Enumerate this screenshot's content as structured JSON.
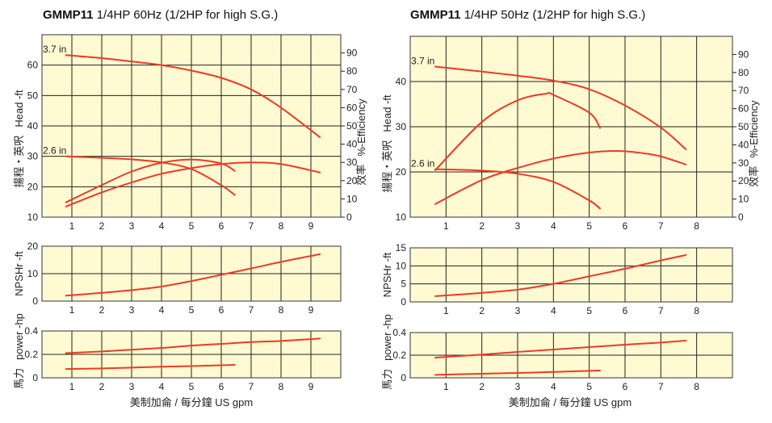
{
  "chart_data": [
    {
      "id": "left",
      "type": "line",
      "title_model": "GMMP11",
      "title_rest": " 1/4HP  60Hz (1/2HP for high S.G.)",
      "xlabel": "美制加侖 / 每分鐘  US gpm",
      "xlim": [
        0,
        10
      ],
      "xticks": [
        1,
        2,
        3,
        4,
        5,
        6,
        7,
        8,
        9
      ],
      "head": {
        "ylabel_cn": "揚程・英呎",
        "ylabel": "Head -ft",
        "ylim": [
          10,
          70
        ],
        "yticks": [
          10,
          20,
          30,
          40,
          50,
          60
        ],
        "y2label_cn": "效率",
        "y2label": "%-Efficiency",
        "y2lim": [
          0,
          100
        ],
        "y2ticks": [
          0,
          10,
          20,
          30,
          40,
          50,
          60,
          70,
          80,
          90
        ],
        "series": [
          {
            "name": "3.7 in",
            "kind": "head",
            "x": [
              0.8,
              2,
              3,
              4,
              5,
              6,
              7,
              8,
              9.3
            ],
            "y": [
              63.3,
              62.3,
              61.2,
              60,
              58.2,
              55.8,
              52,
              46,
              36.3
            ]
          },
          {
            "name": "2.6 in",
            "kind": "head",
            "x": [
              0.8,
              2,
              3,
              4,
              5,
              6,
              6.45
            ],
            "y": [
              30,
              29.5,
              29,
              28,
              25.8,
              20.5,
              17.3
            ]
          },
          {
            "name": "2.6 in efficiency",
            "kind": "eff",
            "x": [
              0.8,
              2,
              3,
              4,
              5,
              6,
              6.45
            ],
            "y": [
              8.1,
              17.6,
              25,
              29.8,
              31.6,
              29.4,
              25.4
            ]
          },
          {
            "name": "3.7 in efficiency",
            "kind": "eff",
            "x": [
              0.8,
              2,
              3,
              4,
              5,
              6,
              7,
              8,
              9.3
            ],
            "y": [
              5.8,
              13.6,
              19,
              23.8,
              26.9,
              29.1,
              30,
              29.1,
              24.5
            ]
          }
        ]
      },
      "npsh": {
        "ylabel": "NPSHr -ft",
        "ylim": [
          0,
          20
        ],
        "yticks": [
          0,
          10,
          20
        ],
        "series": [
          {
            "name": "NPSHr",
            "x": [
              0.8,
              2,
              3,
              4,
              5,
              6,
              7,
              8,
              9.3
            ],
            "y": [
              2,
              3,
              4,
              5.3,
              7.3,
              9.6,
              11.9,
              14.3,
              17.1
            ]
          }
        ]
      },
      "power": {
        "ylabel_cn": "馬力",
        "ylabel": "power -hp",
        "ylim": [
          0,
          0.4
        ],
        "yticks": [
          0,
          0.2,
          0.4
        ],
        "series": [
          {
            "name": "3.7 in power",
            "x": [
              0.8,
              2,
              3,
              4,
              5,
              6,
              7,
              8,
              9.3
            ],
            "y": [
              0.21,
              0.225,
              0.24,
              0.255,
              0.275,
              0.29,
              0.305,
              0.315,
              0.335
            ]
          },
          {
            "name": "2.6 in power",
            "x": [
              0.8,
              2,
              3,
              4,
              5,
              6.45
            ],
            "y": [
              0.075,
              0.08,
              0.087,
              0.095,
              0.1,
              0.11
            ]
          }
        ]
      }
    },
    {
      "id": "right",
      "type": "line",
      "title_model": "GMMP11",
      "title_rest": " 1/4HP  50Hz (1/2HP for high S.G.)",
      "xlabel": "美制加侖 / 每分鐘  US gpm",
      "xlim": [
        0,
        9
      ],
      "xticks": [
        1,
        2,
        3,
        4,
        5,
        6,
        7,
        8
      ],
      "head": {
        "ylabel_cn": "揚程・英呎",
        "ylabel": "Head -ft",
        "ylim": [
          10,
          50
        ],
        "yticks": [
          10,
          20,
          30,
          40
        ],
        "y2label_cn": "效率",
        "y2label": "%-Efficiency",
        "y2lim": [
          0,
          100
        ],
        "y2ticks": [
          0,
          10,
          20,
          30,
          40,
          50,
          60,
          70,
          80,
          90
        ],
        "series": [
          {
            "name": "3.7 in",
            "kind": "head",
            "x": [
              0.7,
              2,
              3,
              4,
              5,
              6,
              7,
              7.7
            ],
            "y": [
              43.3,
              42.2,
              41.3,
              40.2,
              38.3,
              34.7,
              29.8,
              25
            ]
          },
          {
            "name": "2.6 in",
            "kind": "head",
            "x": [
              0.7,
              2,
              3,
              4,
              5,
              5.3
            ],
            "y": [
              20.6,
              20.3,
              19.6,
              17.8,
              13.7,
              11.9
            ]
          },
          {
            "name": "2.6 in efficiency",
            "kind": "eff",
            "x": [
              0.7,
              2,
              3,
              3.8,
              4,
              5,
              5.3
            ],
            "y": [
              26,
              52.6,
              64.6,
              68.3,
              67.6,
              57.8,
              49.3
            ]
          },
          {
            "name": "3.7 in efficiency",
            "kind": "eff",
            "x": [
              0.7,
              2,
              3,
              4,
              5,
              5.8,
              6.5,
              7,
              7.7
            ],
            "y": [
              7.3,
              20.5,
              27.2,
              32.4,
              35.7,
              36.6,
              35.4,
              33.6,
              29.1
            ]
          }
        ]
      },
      "npsh": {
        "ylabel": "NPSHr -ft",
        "ylim": [
          0,
          15
        ],
        "yticks": [
          0,
          5,
          10,
          15
        ],
        "series": [
          {
            "name": "NPSHr",
            "x": [
              0.7,
              2,
              3,
              4,
              5,
              6,
              7,
              7.7
            ],
            "y": [
              1.6,
              2.5,
              3.4,
              5,
              7.1,
              9.2,
              11.5,
              13
            ]
          }
        ]
      },
      "power": {
        "ylabel_cn": "馬力",
        "ylabel": "power -hp",
        "ylim": [
          0,
          0.4
        ],
        "yticks": [
          0,
          0.2,
          0.4
        ],
        "series": [
          {
            "name": "3.7 in power",
            "x": [
              0.7,
              2,
              3,
              4,
              5,
              6,
              7,
              7.7
            ],
            "y": [
              0.179,
              0.205,
              0.229,
              0.25,
              0.271,
              0.293,
              0.312,
              0.329
            ]
          },
          {
            "name": "2.6 in power",
            "x": [
              0.7,
              2,
              3,
              4,
              5.3
            ],
            "y": [
              0.026,
              0.036,
              0.043,
              0.052,
              0.064
            ]
          }
        ]
      }
    }
  ],
  "colors": {
    "curve": "#ee3a24",
    "plot_bg": "#fffad2",
    "grid": "#222222"
  }
}
